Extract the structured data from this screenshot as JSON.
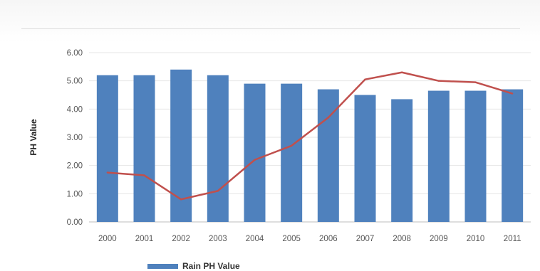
{
  "chart_data": {
    "type": "bar",
    "title": "",
    "xlabel": "",
    "ylabel": "PH Value",
    "ylim": [
      0,
      6
    ],
    "yticks": [
      "0.00",
      "1.00",
      "2.00",
      "3.00",
      "4.00",
      "5.00",
      "6.00"
    ],
    "grid": true,
    "legend_position": "bottom-left",
    "categories": [
      "2000",
      "2001",
      "2002",
      "2003",
      "2004",
      "2005",
      "2006",
      "2007",
      "2008",
      "2009",
      "2010",
      "2011"
    ],
    "series": [
      {
        "name": "Rain PH Value",
        "type": "bar",
        "color": "#4f81bd",
        "values": [
          5.2,
          5.2,
          5.4,
          5.2,
          4.9,
          4.9,
          4.7,
          4.5,
          4.35,
          4.65,
          4.65,
          4.7
        ]
      },
      {
        "type": "line",
        "color": "#c0504d",
        "values": [
          1.75,
          1.65,
          0.8,
          1.1,
          2.2,
          2.7,
          3.7,
          5.05,
          5.3,
          5.0,
          4.95,
          4.55
        ]
      }
    ]
  }
}
